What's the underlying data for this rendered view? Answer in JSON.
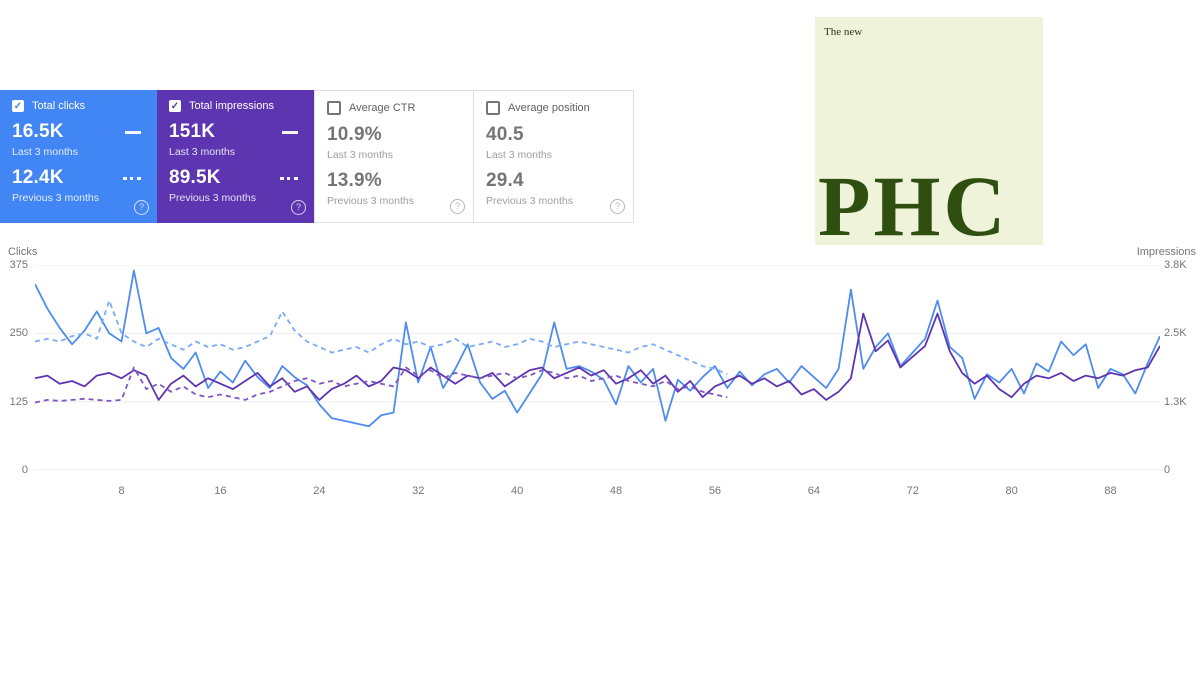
{
  "cards": [
    {
      "label": "Total clicks",
      "checked": true,
      "color": "#4285f4",
      "current": "16.5K",
      "current_caption": "Last 3 months",
      "previous": "12.4K",
      "previous_caption": "Previous 3 months",
      "help": "?"
    },
    {
      "label": "Total impressions",
      "checked": true,
      "color": "#5e35b1",
      "current": "151K",
      "current_caption": "Last 3 months",
      "previous": "89.5K",
      "previous_caption": "Previous 3 months",
      "help": "?"
    },
    {
      "label": "Average CTR",
      "checked": false,
      "color": "#ffffff",
      "current": "10.9%",
      "current_caption": "Last 3 months",
      "previous": "13.9%",
      "previous_caption": "Previous 3 months",
      "help": "?"
    },
    {
      "label": "Average position",
      "checked": false,
      "color": "#ffffff",
      "current": "40.5",
      "current_caption": "Last 3 months",
      "previous": "29.4",
      "previous_caption": "Previous 3 months",
      "help": "?"
    }
  ],
  "logo": {
    "tagline": "The new",
    "name": "PHC",
    "bg_color": "#eef3da",
    "text_color": "#2f4f10"
  },
  "chart_data": {
    "type": "line",
    "left_axis": {
      "label": "Clicks",
      "max": 375,
      "ticks": [
        0,
        125,
        250,
        375
      ]
    },
    "right_axis": {
      "label": "Impressions",
      "max": 3800,
      "ticks": [
        {
          "label": "0",
          "value": 0
        },
        {
          "label": "1.3K",
          "value": 1267
        },
        {
          "label": "2.5K",
          "value": 2533
        },
        {
          "label": "3.8K",
          "value": 3800
        }
      ]
    },
    "x_ticks": [
      8,
      16,
      24,
      32,
      40,
      48,
      56,
      64,
      72,
      80,
      88
    ],
    "x_max": 92,
    "grid": true,
    "series": [
      {
        "name": "Clicks - Last 3 months",
        "axis": "left",
        "style": "solid",
        "color": "#4e8cf0",
        "values": [
          340,
          295,
          260,
          230,
          255,
          290,
          250,
          235,
          365,
          250,
          260,
          205,
          185,
          215,
          150,
          180,
          160,
          200,
          170,
          150,
          190,
          170,
          155,
          120,
          95,
          90,
          85,
          80,
          100,
          105,
          270,
          160,
          225,
          150,
          185,
          230,
          160,
          130,
          145,
          105,
          140,
          175,
          270,
          185,
          190,
          180,
          165,
          120,
          190,
          160,
          185,
          90,
          165,
          145,
          170,
          190,
          150,
          180,
          155,
          175,
          185,
          160,
          190,
          170,
          150,
          185,
          330,
          185,
          225,
          250,
          190,
          215,
          240,
          310,
          225,
          205,
          130,
          175,
          160,
          185,
          140,
          195,
          180,
          235,
          210,
          230,
          150,
          185,
          175,
          140,
          195,
          245
        ]
      },
      {
        "name": "Clicks - Previous 3 months",
        "axis": "left",
        "style": "dashed",
        "color": "#7baaf7",
        "values": [
          235,
          240,
          235,
          245,
          250,
          240,
          310,
          250,
          235,
          225,
          240,
          230,
          220,
          235,
          225,
          230,
          220,
          225,
          235,
          245,
          290,
          255,
          235,
          225,
          215,
          220,
          225,
          215,
          230,
          240,
          230,
          235,
          225,
          230,
          240,
          225,
          230,
          235,
          225,
          230,
          240,
          235,
          225,
          230,
          235,
          230,
          225,
          220,
          215,
          225,
          230,
          220,
          210,
          200,
          190,
          185,
          175
        ]
      },
      {
        "name": "Impressions - Last 3 months",
        "axis": "right",
        "style": "solid",
        "color": "#5e35b1",
        "values": [
          1700,
          1750,
          1600,
          1650,
          1550,
          1750,
          1800,
          1700,
          1850,
          1750,
          1300,
          1600,
          1750,
          1550,
          1700,
          1600,
          1500,
          1650,
          1800,
          1550,
          1700,
          1450,
          1550,
          1300,
          1500,
          1600,
          1750,
          1550,
          1650,
          1900,
          1850,
          1700,
          1900,
          1750,
          1600,
          1750,
          1700,
          1800,
          1550,
          1700,
          1850,
          1900,
          1700,
          1800,
          1900,
          1750,
          1850,
          1600,
          1700,
          1850,
          1600,
          1750,
          1450,
          1650,
          1350,
          1550,
          1650,
          1750,
          1600,
          1700,
          1550,
          1650,
          1400,
          1500,
          1300,
          1450,
          1700,
          2900,
          2200,
          2400,
          1900,
          2100,
          2300,
          2900,
          2200,
          1800,
          1600,
          1750,
          1500,
          1350,
          1600,
          1750,
          1700,
          1800,
          1650,
          1750,
          1700,
          1800,
          1750,
          1850,
          1900,
          2300
        ]
      },
      {
        "name": "Impressions - Previous 3 months",
        "axis": "right",
        "style": "dashed",
        "color": "#7e57c2",
        "values": [
          1250,
          1300,
          1280,
          1300,
          1320,
          1300,
          1280,
          1300,
          1900,
          1500,
          1600,
          1450,
          1550,
          1400,
          1350,
          1400,
          1350,
          1300,
          1400,
          1450,
          1550,
          1650,
          1700,
          1600,
          1650,
          1550,
          1600,
          1650,
          1600,
          1550,
          1900,
          1750,
          1850,
          1700,
          1800,
          1750,
          1700,
          1750,
          1800,
          1700,
          1750,
          1850,
          1800,
          1700,
          1750,
          1650,
          1700,
          1750,
          1650,
          1600,
          1550,
          1650,
          1500,
          1550,
          1450,
          1400,
          1350
        ]
      }
    ]
  }
}
